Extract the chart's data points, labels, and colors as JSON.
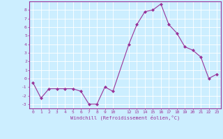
{
  "x": [
    0,
    1,
    2,
    3,
    4,
    5,
    6,
    7,
    8,
    9,
    10,
    12,
    13,
    14,
    15,
    16,
    17,
    18,
    19,
    20,
    21,
    22,
    23
  ],
  "y": [
    -0.5,
    -2.3,
    -1.2,
    -1.2,
    -1.2,
    -1.2,
    -1.5,
    -3.0,
    -3.0,
    -1.0,
    -1.5,
    4.0,
    6.3,
    7.8,
    8.0,
    8.7,
    6.3,
    5.3,
    3.7,
    3.3,
    2.5,
    0.0,
    0.5
  ],
  "xticks": [
    0,
    1,
    2,
    3,
    4,
    5,
    6,
    7,
    8,
    9,
    10,
    12,
    13,
    14,
    15,
    16,
    17,
    18,
    19,
    20,
    21,
    22,
    23
  ],
  "yticks": [
    -3,
    -2,
    -1,
    0,
    1,
    2,
    3,
    4,
    5,
    6,
    7,
    8
  ],
  "ylim": [
    -3.5,
    9.0
  ],
  "xlim": [
    -0.5,
    23.5
  ],
  "xlabel": "Windchill (Refroidissement éolien,°C)",
  "line_color": "#993399",
  "marker_color": "#993399",
  "bg_color": "#cceeff",
  "grid_color": "#ffffff",
  "tick_label_color": "#993399",
  "axis_label_color": "#993399",
  "figsize": [
    3.2,
    2.0
  ],
  "dpi": 100
}
